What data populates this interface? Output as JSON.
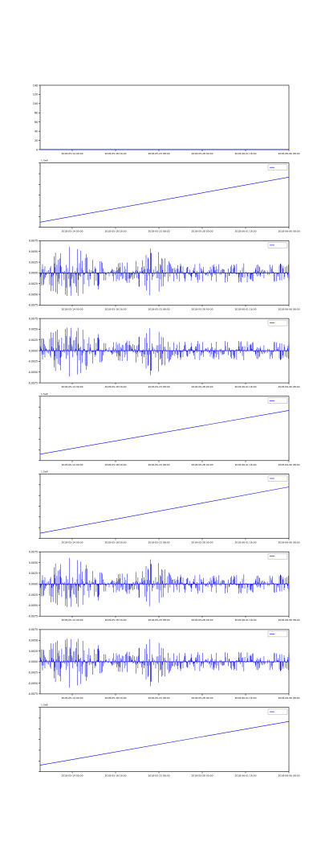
{
  "colors": {
    "series": "#0000ff",
    "axes": "#000000",
    "background": "#ffffff"
  },
  "chart_data": [
    {
      "type": "line",
      "title": "",
      "xlabel": "",
      "ylabel": "",
      "ylim": [
        0,
        140
      ],
      "yticks": [
        "0",
        "20",
        "40",
        "60",
        "80",
        "100",
        "120",
        "140"
      ],
      "xticks": [
        "2018-05-14 00:00",
        "2018-05-18 16:00",
        "2018-05-23 08:00",
        "2018-05-28 00:00",
        "2018-06-01 16:00",
        "2018-06-06 08:00"
      ],
      "offset_text": "",
      "legend": null,
      "series": [
        {
          "pattern": "flat",
          "values": [
            0,
            0
          ]
        }
      ]
    },
    {
      "type": "line",
      "title": "",
      "xlabel": "",
      "ylabel": "",
      "ylim": [
        0,
        1
      ],
      "yticks": [
        "",
        "",
        "",
        "",
        "",
        "",
        ""
      ],
      "xticks": [
        "2018-05-14 00:00",
        "2018-05-18 16:00",
        "2018-05-23 08:00",
        "2018-05-28 00:00",
        "2018-06-01 16:00",
        "2018-06-06 08:00"
      ],
      "offset_text": "1.5e8",
      "legend": "",
      "series": [
        {
          "name": "",
          "pattern": "trend",
          "values": [
            0.08,
            0.78
          ]
        }
      ]
    },
    {
      "type": "line",
      "title": "",
      "xlabel": "",
      "ylabel": "",
      "ylim": [
        -0.0075,
        0.0075
      ],
      "yticks": [
        "-0.0075",
        "-0.0050",
        "-0.0025",
        "0.0000",
        "0.0025",
        "0.0050",
        "0.0075"
      ],
      "xticks": [
        "2018-05-14 00:00",
        "2018-05-18 16:00",
        "2018-05-23 08:00",
        "2018-05-28 00:00",
        "2018-06-01 16:00",
        "2018-06-06 08:00"
      ],
      "offset_text": "",
      "legend": "",
      "series": [
        {
          "name": "",
          "pattern": "noise",
          "seed": 11,
          "flip": false,
          "values": []
        }
      ]
    },
    {
      "type": "line",
      "title": "",
      "xlabel": "",
      "ylabel": "",
      "ylim": [
        -0.0075,
        0.0075
      ],
      "yticks": [
        "-0.0075",
        "-0.0050",
        "-0.0025",
        "0.0000",
        "0.0025",
        "0.0050",
        "0.0075"
      ],
      "xticks": [
        "2018-05-14 00:00",
        "2018-05-18 16:00",
        "2018-05-23 08:00",
        "2018-05-28 00:00",
        "2018-06-01 16:00",
        "2018-06-06 08:00"
      ],
      "offset_text": "",
      "legend": "",
      "series": [
        {
          "name": "",
          "pattern": "noise",
          "seed": 11,
          "flip": true,
          "values": []
        }
      ]
    },
    {
      "type": "line",
      "title": "",
      "xlabel": "",
      "ylabel": "",
      "ylim": [
        0,
        1
      ],
      "yticks": [
        "",
        "",
        "",
        "",
        "",
        "",
        ""
      ],
      "xticks": [
        "2018-05-14 00:00",
        "2018-05-18 16:00",
        "2018-05-23 08:00",
        "2018-05-28 00:00",
        "2018-06-01 16:00",
        "2018-06-06 08:00"
      ],
      "offset_text": "1.5e8",
      "legend": "",
      "series": [
        {
          "name": "",
          "pattern": "trend",
          "values": [
            0.1,
            0.78
          ]
        }
      ]
    },
    {
      "type": "line",
      "title": "",
      "xlabel": "",
      "ylabel": "",
      "ylim": [
        0,
        1
      ],
      "yticks": [
        "",
        "",
        "",
        "",
        "",
        "",
        ""
      ],
      "xticks": [
        "2018-05-14 00:00",
        "2018-05-18 16:00",
        "2018-05-23 08:00",
        "2018-05-28 00:00",
        "2018-06-01 16:00",
        "2018-06-06 08:00"
      ],
      "offset_text": "1.5e8",
      "legend": "",
      "series": [
        {
          "name": "",
          "pattern": "trend",
          "values": [
            0.08,
            0.8
          ]
        }
      ]
    },
    {
      "type": "line",
      "title": "",
      "xlabel": "",
      "ylabel": "",
      "ylim": [
        -0.0075,
        0.0075
      ],
      "yticks": [
        "-0.0075",
        "-0.0050",
        "-0.0025",
        "0.0000",
        "0.0025",
        "0.0050",
        "0.0075"
      ],
      "xticks": [
        "2018-05-14 00:00",
        "2018-05-18 16:00",
        "2018-05-23 08:00",
        "2018-05-28 00:00",
        "2018-06-01 16:00",
        "2018-06-06 08:00"
      ],
      "offset_text": "",
      "legend": "",
      "series": [
        {
          "name": "",
          "pattern": "noise",
          "seed": 11,
          "flip": false,
          "values": []
        }
      ]
    },
    {
      "type": "line",
      "title": "",
      "xlabel": "",
      "ylabel": "",
      "ylim": [
        -0.0075,
        0.0075
      ],
      "yticks": [
        "-0.0075",
        "-0.0050",
        "-0.0025",
        "0.0000",
        "0.0025",
        "0.0050",
        "0.0075"
      ],
      "xticks": [
        "2018-05-14 00:00",
        "2018-05-18 16:00",
        "2018-05-23 08:00",
        "2018-05-28 00:00",
        "2018-06-01 16:00",
        "2018-06-06 08:00"
      ],
      "offset_text": "",
      "legend": "",
      "series": [
        {
          "name": "",
          "pattern": "noise",
          "seed": 11,
          "flip": true,
          "values": []
        }
      ]
    },
    {
      "type": "line",
      "title": "",
      "xlabel": "",
      "ylabel": "",
      "ylim": [
        0,
        1
      ],
      "yticks": [
        "",
        "",
        "",
        "",
        "",
        "",
        ""
      ],
      "xticks": [
        "2018-05-14 00:00",
        "2018-05-18 16:00",
        "2018-05-23 08:00",
        "2018-05-28 00:00",
        "2018-06-01 16:00",
        "2018-06-06 08:00"
      ],
      "offset_text": "1.5e8",
      "legend": "",
      "series": [
        {
          "name": "",
          "pattern": "trend",
          "values": [
            0.1,
            0.78
          ]
        }
      ]
    }
  ]
}
